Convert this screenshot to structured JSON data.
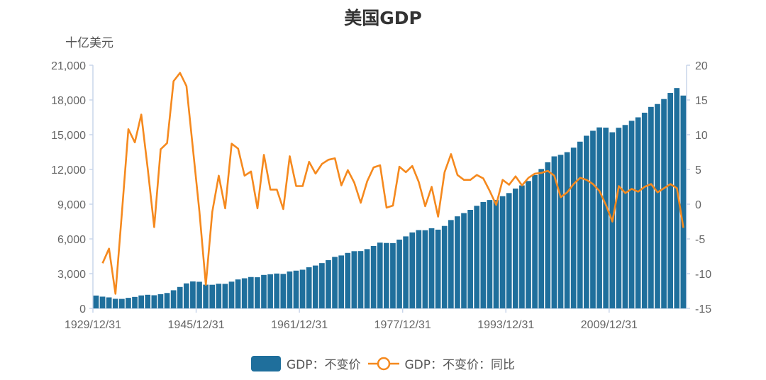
{
  "title": "美国GDP",
  "unit_label": "十亿美元",
  "legend": {
    "bar_label": "GDP：不变价",
    "line_label": "GDP：不变价：同比"
  },
  "colors": {
    "bar": "#1f6f9c",
    "line": "#f5891e",
    "axis": "#c9d5ea",
    "text": "#666666"
  },
  "chart_data": {
    "type": "bar+line",
    "title": "美国GDP",
    "xlabel": "",
    "ylabel": "十亿美元",
    "y2label": "%",
    "ylim": [
      0,
      21000
    ],
    "y2lim": [
      -15,
      20
    ],
    "yticks": [
      0,
      3000,
      6000,
      9000,
      12000,
      15000,
      18000,
      21000
    ],
    "y2ticks": [
      -15,
      -10,
      -5,
      0,
      5,
      10,
      15,
      20
    ],
    "xticks": [
      "1929/12/31",
      "1945/12/31",
      "1961/12/31",
      "1977/12/31",
      "1993/12/31",
      "2009/12/31"
    ],
    "grid": false,
    "legend_position": "bottom",
    "x": [
      1929,
      1930,
      1931,
      1932,
      1933,
      1934,
      1935,
      1936,
      1937,
      1938,
      1939,
      1940,
      1941,
      1942,
      1943,
      1944,
      1945,
      1946,
      1947,
      1948,
      1949,
      1950,
      1951,
      1952,
      1953,
      1954,
      1955,
      1956,
      1957,
      1958,
      1959,
      1960,
      1961,
      1962,
      1963,
      1964,
      1965,
      1966,
      1967,
      1968,
      1969,
      1970,
      1971,
      1972,
      1973,
      1974,
      1975,
      1976,
      1977,
      1978,
      1979,
      1980,
      1981,
      1982,
      1983,
      1984,
      1985,
      1986,
      1987,
      1988,
      1989,
      1990,
      1991,
      1992,
      1993,
      1994,
      1995,
      1996,
      1997,
      1998,
      1999,
      2000,
      2001,
      2002,
      2003,
      2004,
      2005,
      2006,
      2007,
      2008,
      2009,
      2010,
      2011,
      2012,
      2013,
      2014,
      2015,
      2016,
      2017,
      2018,
      2019,
      2020
    ],
    "series": [
      {
        "name": "GDP：不变价",
        "type": "bar",
        "axis": "left",
        "values": [
          1110,
          1015,
          950,
          830,
          820,
          910,
          990,
          1120,
          1175,
          1135,
          1225,
          1330,
          1565,
          1850,
          2160,
          2330,
          2300,
          2050,
          2040,
          2130,
          2120,
          2310,
          2500,
          2600,
          2710,
          2690,
          2890,
          2950,
          3010,
          2980,
          3190,
          3260,
          3340,
          3550,
          3700,
          3910,
          4170,
          4450,
          4570,
          4790,
          4940,
          4950,
          5120,
          5390,
          5680,
          5650,
          5640,
          5940,
          6220,
          6560,
          6760,
          6750,
          6920,
          6800,
          7120,
          7630,
          7950,
          8230,
          8510,
          8860,
          9190,
          9360,
          9360,
          9690,
          9960,
          10350,
          10620,
          11000,
          11520,
          12040,
          12620,
          13130,
          13260,
          13490,
          13880,
          14400,
          14910,
          15340,
          15630,
          15610,
          15210,
          15600,
          15840,
          16200,
          16500,
          16900,
          17400,
          17650,
          18080,
          18610,
          19030,
          18380
        ]
      },
      {
        "name": "GDP：不变价：同比",
        "type": "line",
        "axis": "right",
        "values": [
          null,
          -8.5,
          -6.4,
          -12.9,
          -1.2,
          10.8,
          8.9,
          12.9,
          5.1,
          -3.3,
          7.9,
          8.8,
          17.7,
          18.9,
          17.0,
          8.0,
          -1.0,
          -11.6,
          -1.1,
          4.1,
          -0.6,
          8.7,
          8.0,
          4.1,
          4.7,
          -0.6,
          7.1,
          2.1,
          2.1,
          -0.7,
          6.9,
          2.6,
          2.6,
          6.1,
          4.4,
          5.8,
          6.4,
          6.6,
          2.7,
          4.9,
          3.1,
          0.2,
          3.3,
          5.3,
          5.6,
          -0.5,
          -0.2,
          5.4,
          4.6,
          5.5,
          3.2,
          -0.3,
          2.5,
          -1.8,
          4.6,
          7.2,
          4.2,
          3.5,
          3.5,
          4.2,
          3.7,
          1.9,
          -0.1,
          3.5,
          2.8,
          4.0,
          2.7,
          3.8,
          4.4,
          4.5,
          4.8,
          4.1,
          1.0,
          1.7,
          2.9,
          3.8,
          3.5,
          2.9,
          1.9,
          -0.1,
          -2.5,
          2.6,
          1.6,
          2.2,
          1.8,
          2.5,
          2.9,
          1.7,
          2.3,
          2.9,
          2.3,
          -3.4
        ]
      }
    ]
  }
}
